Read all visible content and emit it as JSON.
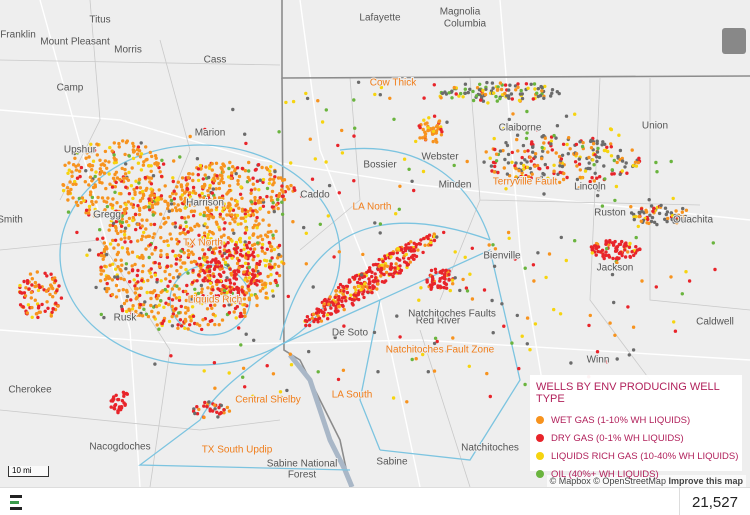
{
  "map": {
    "counties": [
      "Titus",
      "Lafayette",
      "Magnolia",
      "Columbia",
      "Franklin",
      "Mount Pleasant",
      "Morris",
      "Cass",
      "Camp",
      "Upshur",
      "Marion",
      "Claiborne",
      "Union",
      "Webster",
      "Bossier",
      "Minden",
      "Caddo",
      "Harrison",
      "Gregg",
      "Lincoln",
      "Ruston",
      "Ouachita",
      "Jackson",
      "Bienville",
      "Smith",
      "Rusk",
      "De Soto",
      "Red River",
      "Cherokee",
      "Nacogdoches",
      "Sabine",
      "Natchitoches",
      "Winn",
      "Caldwell",
      "Natchitoches Faults",
      "Sabine National",
      "Forest"
    ],
    "plays": [
      "Cow Thick",
      "Terryville Fault",
      "LA North",
      "TX North",
      "Liquids Rich",
      "Natchitoches Fault Zone",
      "Central Shelby",
      "LA South",
      "TX South Updip"
    ],
    "scale": "10 mi",
    "attribution": "© Mapbox © OpenStreetMap",
    "improve": "Improve this map"
  },
  "legend": {
    "title": "WELLS BY ENV PRODUCING WELL TYPE",
    "items": [
      {
        "label": "WET GAS (1-10% WH LIQUIDS)",
        "color": "#f7931e"
      },
      {
        "label": "DRY GAS (0-1% WH LIQUIDS)",
        "color": "#e8242a"
      },
      {
        "label": "LIQUIDS RICH GAS (10-40% WH LIQUIDS)",
        "color": "#f6d40f"
      },
      {
        "label": "OIL (40%+ WH LIQUIDS)",
        "color": "#6ab43e"
      }
    ]
  },
  "footer": {
    "count": "21,527"
  }
}
